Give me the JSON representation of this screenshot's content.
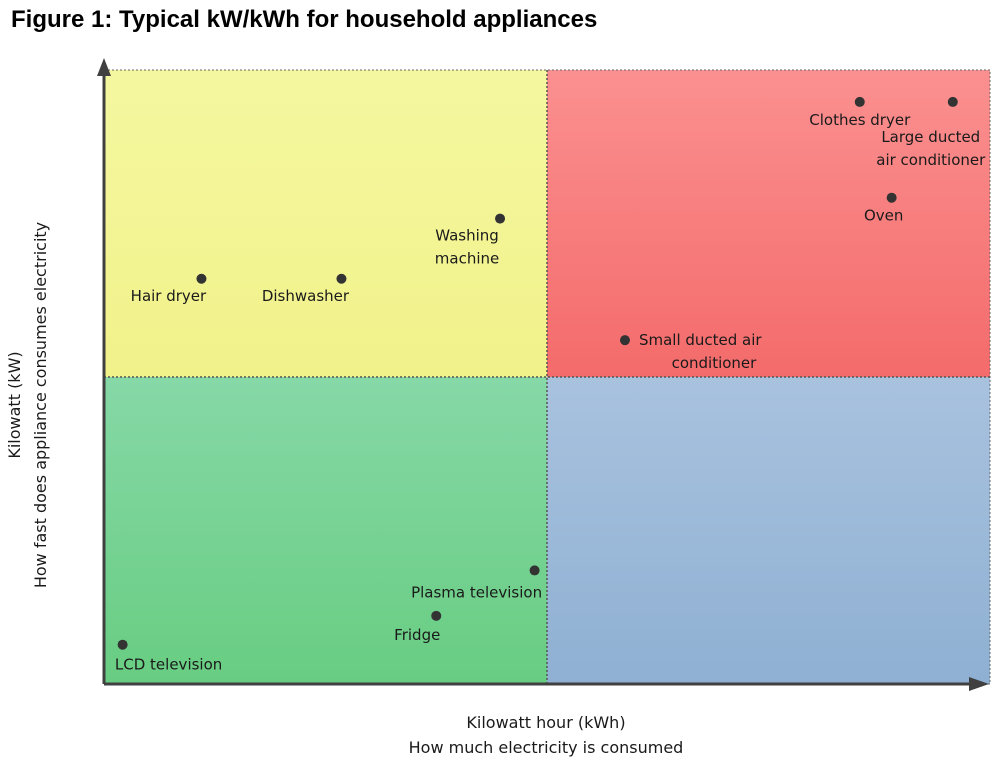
{
  "title": "Figure 1: Typical kW/kWh for household appliances",
  "chart_data": {
    "type": "scatter",
    "title": "Figure 1: Typical kW/kWh for household appliances",
    "xlabel": [
      "Kilowatt hour (kWh)",
      "How much electricity is consumed"
    ],
    "ylabel": [
      "Kilowatt (kW)",
      "How fast does appliance consumes electricity"
    ],
    "xlim": [
      0,
      100
    ],
    "ylim": [
      0,
      100
    ],
    "x_split": 50,
    "y_split": 50,
    "grid": false,
    "quadrant_colors": {
      "top_left": [
        "#f5f7a0",
        "#f1f28a"
      ],
      "top_right": [
        "#fb9090",
        "#f46b6b"
      ],
      "bottom_left": [
        "#86d8a6",
        "#68cd82"
      ],
      "bottom_right": [
        "#a8c2de",
        "#8fb0d3"
      ]
    },
    "point_color": "#333333",
    "points": [
      {
        "label": [
          "Hair dryer"
        ],
        "x": 11,
        "y": 66
      },
      {
        "label": [
          "Dishwasher"
        ],
        "x": 26.8,
        "y": 66
      },
      {
        "label": [
          "Washing",
          "machine"
        ],
        "x": 44.7,
        "y": 75.8
      },
      {
        "label": [
          "Small ducted air",
          "conditioner"
        ],
        "x": 58.8,
        "y": 56
      },
      {
        "label": [
          "Clothes dryer"
        ],
        "x": 85.3,
        "y": 94.8
      },
      {
        "label": [
          "Large ducted",
          "air conditioner"
        ],
        "x": 95.8,
        "y": 94.8
      },
      {
        "label": [
          "Oven"
        ],
        "x": 88.9,
        "y": 79.2
      },
      {
        "label": [
          "Plasma television"
        ],
        "x": 48.6,
        "y": 18.5
      },
      {
        "label": [
          "Fridge"
        ],
        "x": 37.5,
        "y": 11.1
      },
      {
        "label": [
          "LCD television"
        ],
        "x": 2.1,
        "y": 6.4
      }
    ]
  }
}
